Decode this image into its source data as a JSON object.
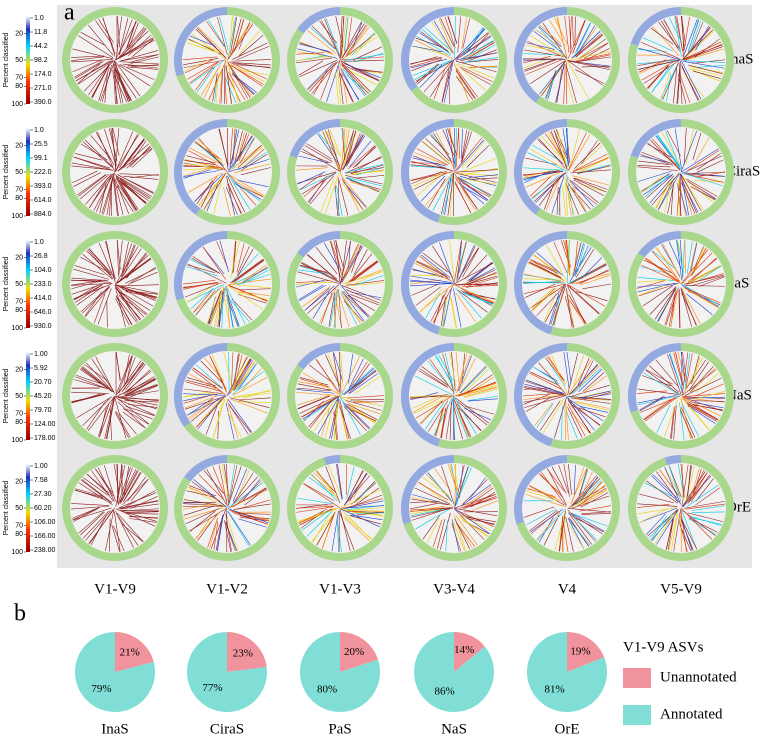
{
  "panel_a": {
    "label": "a",
    "scale_title": "Percent classified",
    "scale_lim": [
      0,
      100
    ],
    "scale_ticks": [
      20,
      50,
      70,
      80,
      100
    ],
    "columns": [
      "V1-V9",
      "V1-V2",
      "V1-V3",
      "V3-V4",
      "V4",
      "V5-V9"
    ],
    "ring_colors": {
      "classified": "#a9d88c",
      "unclassified": "#93a9e0"
    },
    "rows": [
      {
        "name": "InaS",
        "count_ticks": [
          {
            "value": 1,
            "label": "1.0"
          },
          11.8,
          44.2,
          98.2,
          {
            "value": 174,
            "label": "174.0"
          },
          {
            "value": 271,
            "label": "271.0"
          },
          {
            "value": 390,
            "label": "390.0"
          }
        ],
        "unclassified_fraction": [
          0,
          0.3,
          0.15,
          0.35,
          0.4,
          0.2
        ]
      },
      {
        "name": "CiraS",
        "count_ticks": [
          {
            "value": 1,
            "label": "1.0"
          },
          25.5,
          99.1,
          {
            "value": 222,
            "label": "222.0"
          },
          {
            "value": 393,
            "label": "393.0"
          },
          {
            "value": 614,
            "label": "614.0"
          },
          {
            "value": 884,
            "label": "884.0"
          }
        ],
        "unclassified_fraction": [
          0,
          0.4,
          0.2,
          0.45,
          0.4,
          0.2
        ]
      },
      {
        "name": "PaS",
        "count_ticks": [
          {
            "value": 1,
            "label": "1.0"
          },
          26.8,
          {
            "value": 104,
            "label": "104.0"
          },
          {
            "value": 233,
            "label": "233.0"
          },
          {
            "value": 414,
            "label": "414.0"
          },
          {
            "value": 646,
            "label": "646.0"
          },
          {
            "value": 930,
            "label": "930.0"
          }
        ],
        "unclassified_fraction": [
          0,
          0.3,
          0.15,
          0.45,
          0.45,
          0.15
        ]
      },
      {
        "name": "NaS",
        "count_ticks": [
          {
            "value": 1,
            "label": "1.00"
          },
          5.92,
          {
            "value": 20.7,
            "label": "20.70"
          },
          {
            "value": 45.2,
            "label": "45.20"
          },
          {
            "value": 79.7,
            "label": "79.70"
          },
          {
            "value": 124,
            "label": "124.00"
          },
          {
            "value": 178,
            "label": "178.00"
          }
        ],
        "unclassified_fraction": [
          0,
          0.35,
          0.15,
          0.45,
          0.45,
          0.3
        ]
      },
      {
        "name": "OrE",
        "count_ticks": [
          {
            "value": 1,
            "label": "1.00"
          },
          7.58,
          {
            "value": 27.3,
            "label": "27.30"
          },
          {
            "value": 60.2,
            "label": "60.20"
          },
          {
            "value": 106,
            "label": "106.00"
          },
          {
            "value": 166,
            "label": "166.00"
          },
          {
            "value": 238,
            "label": "238.00"
          }
        ],
        "unclassified_fraction": [
          0,
          0.15,
          0.05,
          0.3,
          0.3,
          0.05
        ]
      }
    ]
  },
  "panel_b_label": "b",
  "chart_data": [
    {
      "type": "pie",
      "title": "InaS",
      "legend_title": "V1-V9 ASVs",
      "categories": [
        "Unannotated",
        "Annotated"
      ],
      "values": [
        21,
        79
      ],
      "value_labels": [
        "21%",
        "79%"
      ],
      "colors": [
        "#f0939c",
        "#80ded6"
      ]
    },
    {
      "type": "pie",
      "title": "CiraS",
      "categories": [
        "Unannotated",
        "Annotated"
      ],
      "values": [
        23,
        77
      ],
      "value_labels": [
        "23%",
        "77%"
      ],
      "colors": [
        "#f0939c",
        "#80ded6"
      ]
    },
    {
      "type": "pie",
      "title": "PaS",
      "categories": [
        "Unannotated",
        "Annotated"
      ],
      "values": [
        20,
        80
      ],
      "value_labels": [
        "20%",
        "80%"
      ],
      "colors": [
        "#f0939c",
        "#80ded6"
      ]
    },
    {
      "type": "pie",
      "title": "NaS",
      "categories": [
        "Unannotated",
        "Annotated"
      ],
      "values": [
        14,
        86
      ],
      "value_labels": [
        "14%",
        "86%"
      ],
      "colors": [
        "#f0939c",
        "#80ded6"
      ]
    },
    {
      "type": "pie",
      "title": "OrE",
      "categories": [
        "Unannotated",
        "Annotated"
      ],
      "values": [
        19,
        81
      ],
      "value_labels": [
        "19%",
        "81%"
      ],
      "colors": [
        "#f0939c",
        "#80ded6"
      ]
    }
  ]
}
